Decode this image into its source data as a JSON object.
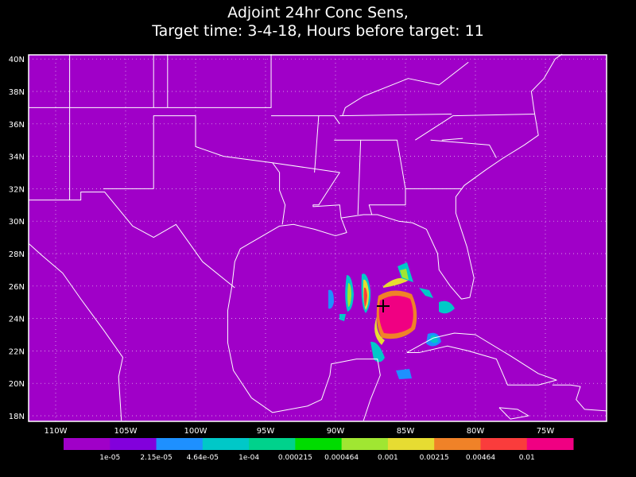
{
  "title": [
    "Adjoint 24hr Conc Sens,",
    "Target time: 3-4-18, Hours before target: 11"
  ],
  "latitude_labels": [
    "18N",
    "20N",
    "22N",
    "24N",
    "26N",
    "28N",
    "30N",
    "32N",
    "34N",
    "36N",
    "38N",
    "40N"
  ],
  "longitude_labels": [
    "110W",
    "105W",
    "100W",
    "95W",
    "90W",
    "85W",
    "80W",
    "75W"
  ],
  "colorbar": {
    "colors": [
      "#a000c8",
      "#8200dc",
      "#1e90ff",
      "#00c8c8",
      "#00d28c",
      "#00dc00",
      "#a0e632",
      "#e6dc32",
      "#f08228",
      "#fa3c3c",
      "#f00082"
    ],
    "labels": [
      "1e-05",
      "2.15e-05",
      "4.64e-05",
      "1e-04",
      "0.000215",
      "0.000464",
      "0.001",
      "0.00215",
      "0.00464",
      "0.01"
    ]
  }
}
